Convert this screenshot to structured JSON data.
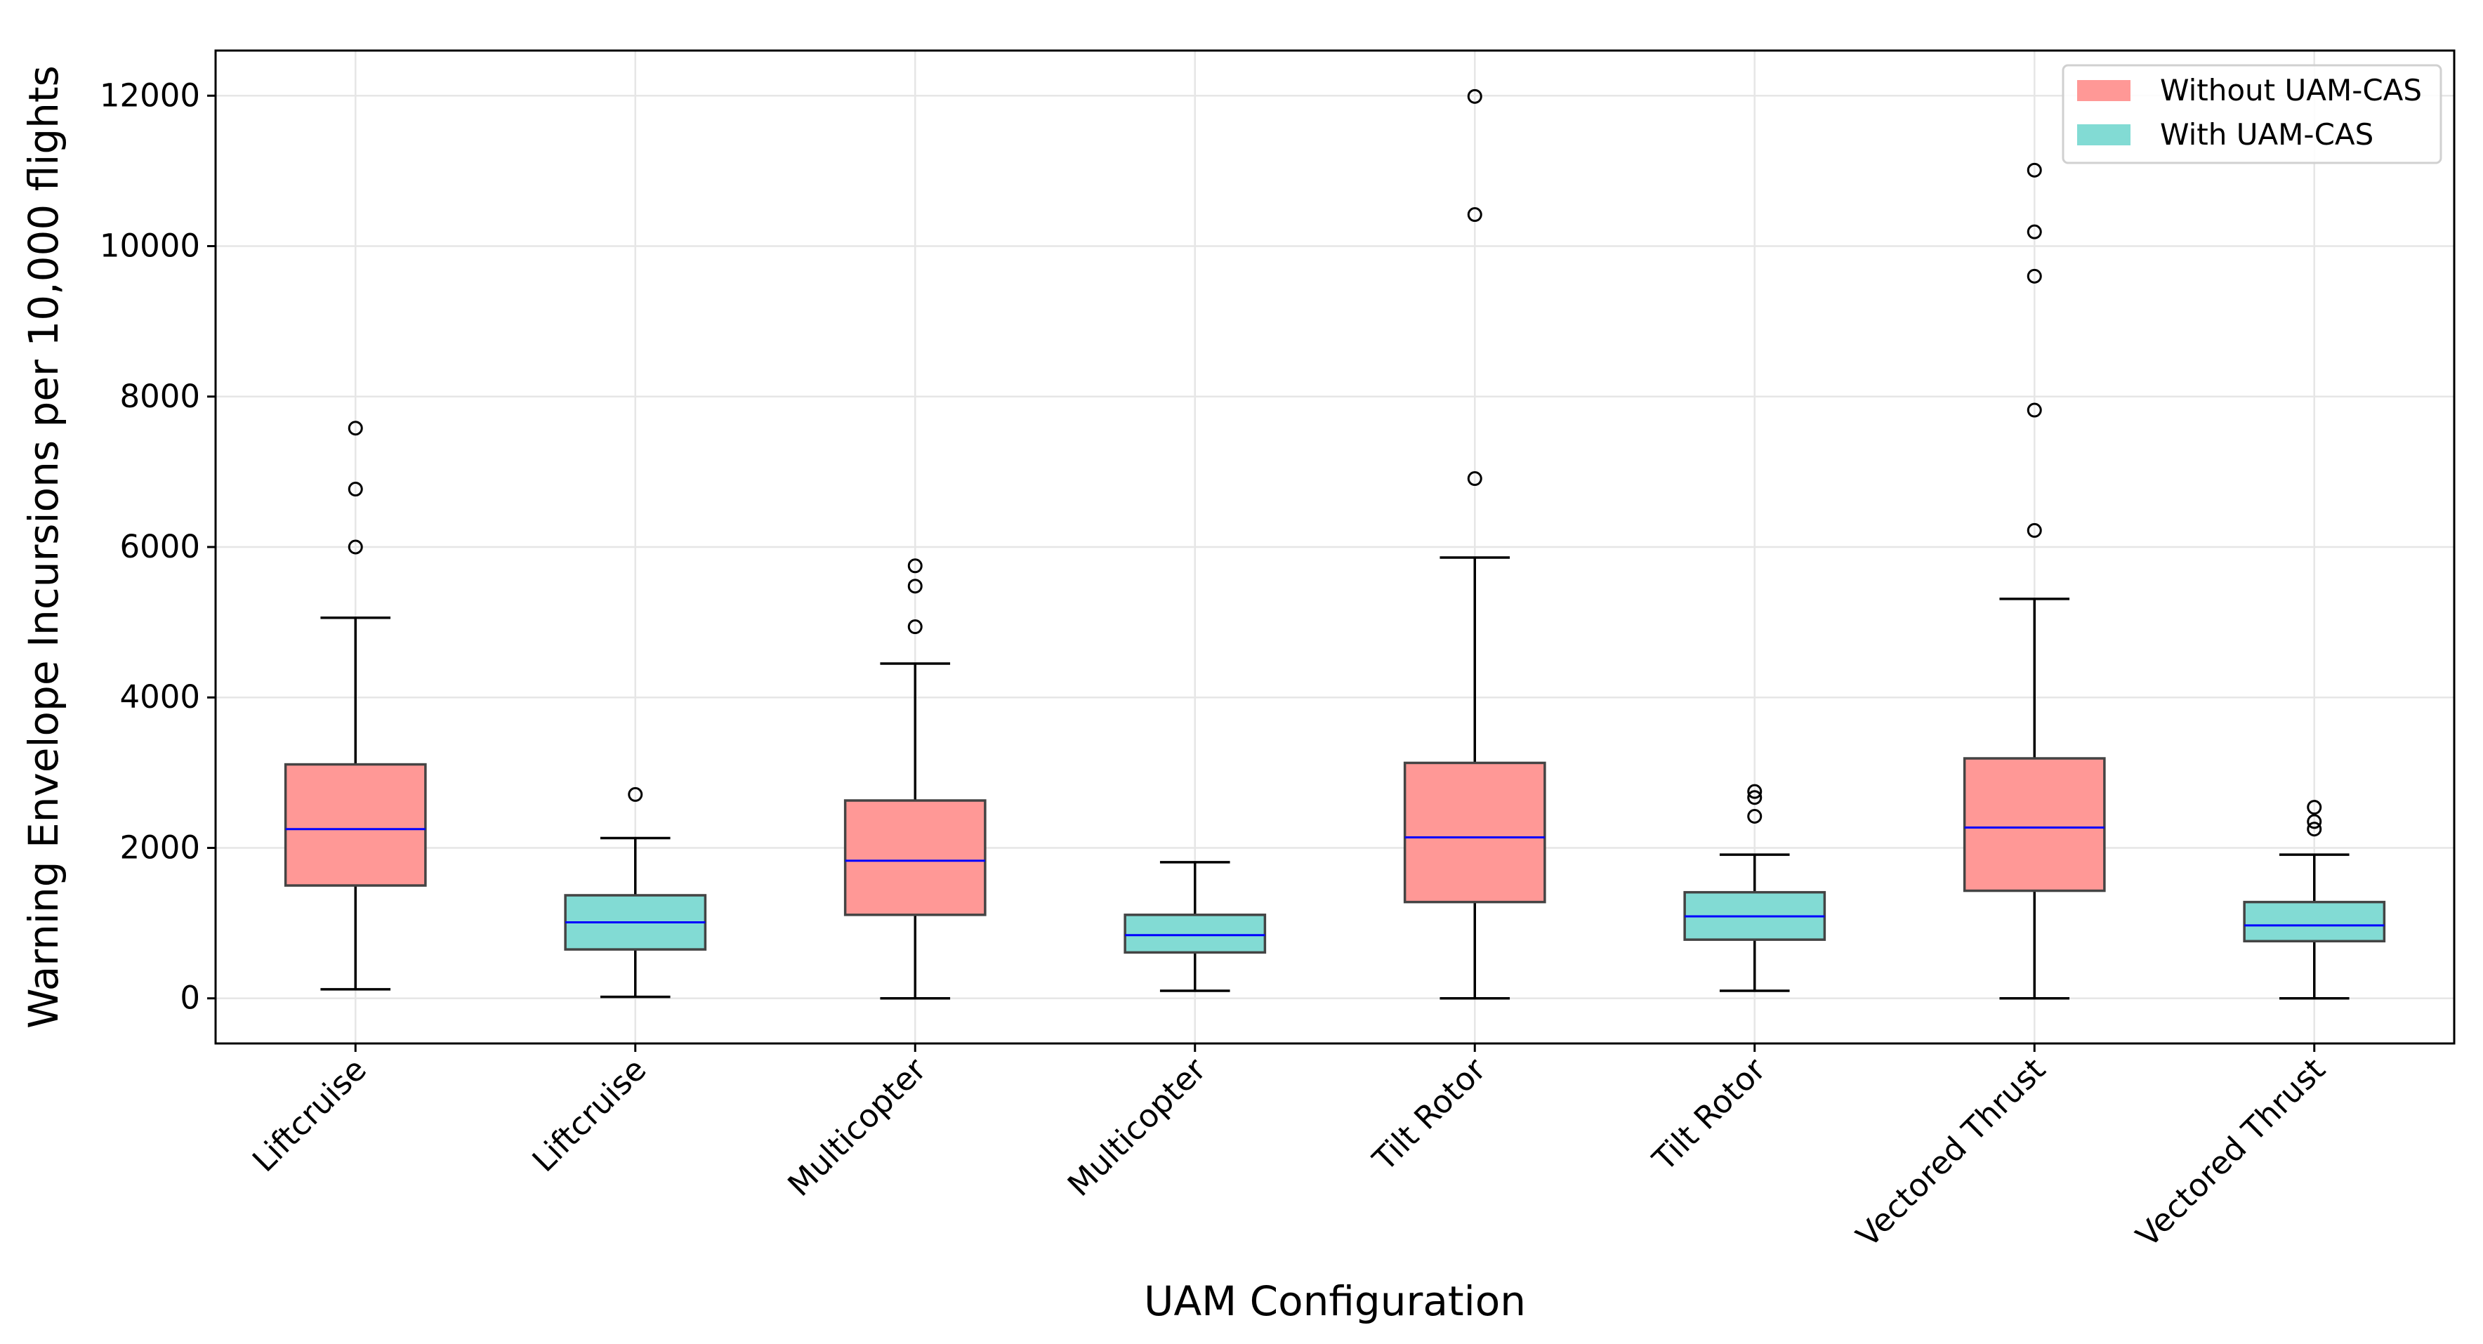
{
  "chart_data": {
    "type": "box",
    "title": "",
    "xlabel": "UAM Configuration",
    "ylabel": "Warning Envelope Incursions per 10,000 flights",
    "ylim": [
      -600,
      12600
    ],
    "yticks": [
      0,
      2000,
      4000,
      6000,
      8000,
      10000,
      12000
    ],
    "grid": true,
    "legend": {
      "placement": "top-right",
      "entries": [
        {
          "label": "Without UAM-CAS",
          "color": "#ff9896"
        },
        {
          "label": "With UAM-CAS",
          "color": "#82dbd4"
        }
      ]
    },
    "median_color": "#0000ff",
    "boxes": [
      {
        "category": "Liftcruise",
        "group": "Without UAM-CAS",
        "whisker_low": 120,
        "q1": 1500,
        "median": 2250,
        "q3": 3110,
        "whisker_high": 5060,
        "outliers": [
          6000,
          6770,
          7580
        ]
      },
      {
        "category": "Liftcruise",
        "group": "With UAM-CAS",
        "whisker_low": 20,
        "q1": 650,
        "median": 1010,
        "q3": 1370,
        "whisker_high": 2130,
        "outliers": [
          2710
        ]
      },
      {
        "category": "Multicopter",
        "group": "Without UAM-CAS",
        "whisker_low": 0,
        "q1": 1110,
        "median": 1830,
        "q3": 2630,
        "whisker_high": 4450,
        "outliers": [
          4940,
          5480,
          5750
        ]
      },
      {
        "category": "Multicopter",
        "group": "With UAM-CAS",
        "whisker_low": 100,
        "q1": 610,
        "median": 840,
        "q3": 1110,
        "whisker_high": 1810,
        "outliers": []
      },
      {
        "category": "Tilt Rotor",
        "group": "Without UAM-CAS",
        "whisker_low": 0,
        "q1": 1280,
        "median": 2140,
        "q3": 3130,
        "whisker_high": 5860,
        "outliers": [
          6910,
          10420,
          11990
        ]
      },
      {
        "category": "Tilt Rotor",
        "group": "With UAM-CAS",
        "whisker_low": 100,
        "q1": 780,
        "median": 1090,
        "q3": 1410,
        "whisker_high": 1910,
        "outliers": [
          2420,
          2670,
          2750
        ]
      },
      {
        "category": "Vectored Thrust",
        "group": "Without UAM-CAS",
        "whisker_low": 0,
        "q1": 1430,
        "median": 2270,
        "q3": 3190,
        "whisker_high": 5310,
        "outliers": [
          6220,
          7820,
          9600,
          10190,
          11010
        ]
      },
      {
        "category": "Vectored Thrust",
        "group": "With UAM-CAS",
        "whisker_low": 0,
        "q1": 760,
        "median": 970,
        "q3": 1280,
        "whisker_high": 1910,
        "outliers": [
          2250,
          2350,
          2540
        ]
      }
    ]
  }
}
